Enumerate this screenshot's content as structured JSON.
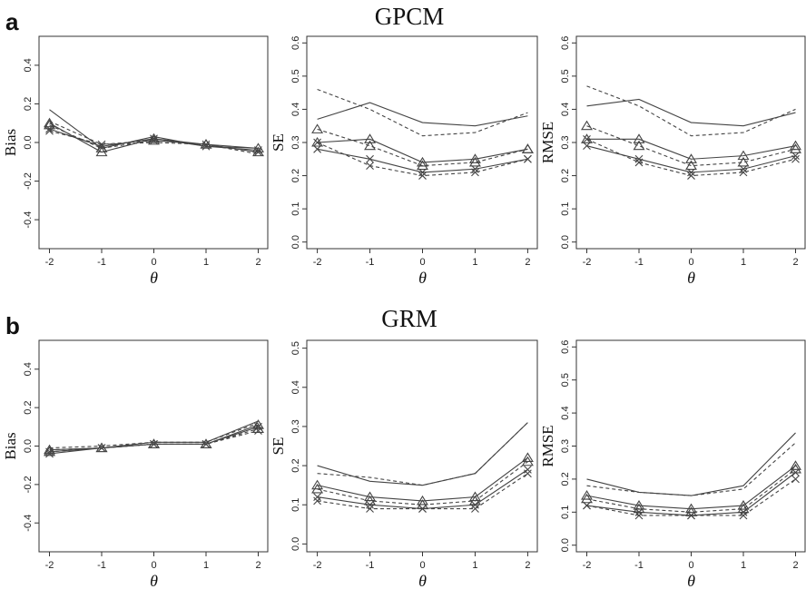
{
  "figure": {
    "row_letters": [
      "a",
      "b"
    ],
    "row_titles": [
      "GPCM",
      "GRM"
    ]
  },
  "colors": {
    "line": "#444444",
    "frame": "#333333",
    "text": "#111111"
  },
  "chart_data": [
    {
      "type": "line",
      "row": "a",
      "model": "GPCM",
      "title": "GPCM",
      "xlabel": "θ",
      "ylabel": "Bias",
      "x": [
        -2,
        -1,
        0,
        1,
        2
      ],
      "xlim": [
        -2.2,
        2.2
      ],
      "ylim": [
        -0.55,
        0.55
      ],
      "yticks": [
        -0.4,
        -0.2,
        0.0,
        0.2,
        0.4
      ],
      "series": [
        {
          "values": [
            0.17,
            -0.03,
            0.03,
            -0.02,
            -0.03
          ],
          "dash": "solid",
          "marker": "none"
        },
        {
          "values": [
            0.11,
            -0.01,
            0.0,
            -0.01,
            -0.06
          ],
          "dash": "dashed",
          "marker": "none"
        },
        {
          "values": [
            0.1,
            -0.05,
            0.02,
            -0.01,
            -0.03
          ],
          "dash": "solid",
          "marker": "triangle"
        },
        {
          "values": [
            0.09,
            -0.03,
            0.01,
            -0.01,
            -0.05
          ],
          "dash": "dashed",
          "marker": "triangle"
        },
        {
          "values": [
            0.07,
            -0.02,
            0.02,
            -0.02,
            -0.04
          ],
          "dash": "solid",
          "marker": "x"
        },
        {
          "values": [
            0.06,
            -0.01,
            0.01,
            -0.01,
            -0.05
          ],
          "dash": "dashed",
          "marker": "x"
        }
      ]
    },
    {
      "type": "line",
      "row": "a",
      "model": "GPCM",
      "title": "",
      "xlabel": "θ",
      "ylabel": "SE",
      "x": [
        -2,
        -1,
        0,
        1,
        2
      ],
      "xlim": [
        -2.2,
        2.2
      ],
      "ylim": [
        -0.02,
        0.62
      ],
      "yticks": [
        0.0,
        0.1,
        0.2,
        0.3,
        0.4,
        0.5,
        0.6
      ],
      "series": [
        {
          "values": [
            0.37,
            0.42,
            0.36,
            0.35,
            0.38
          ],
          "dash": "solid",
          "marker": "none"
        },
        {
          "values": [
            0.46,
            0.4,
            0.32,
            0.33,
            0.39
          ],
          "dash": "dashed",
          "marker": "none"
        },
        {
          "values": [
            0.3,
            0.31,
            0.24,
            0.25,
            0.28
          ],
          "dash": "solid",
          "marker": "triangle"
        },
        {
          "values": [
            0.34,
            0.29,
            0.23,
            0.24,
            0.28
          ],
          "dash": "dashed",
          "marker": "triangle"
        },
        {
          "values": [
            0.28,
            0.25,
            0.21,
            0.22,
            0.25
          ],
          "dash": "solid",
          "marker": "x"
        },
        {
          "values": [
            0.3,
            0.23,
            0.2,
            0.21,
            0.25
          ],
          "dash": "dashed",
          "marker": "x"
        }
      ]
    },
    {
      "type": "line",
      "row": "a",
      "model": "GPCM",
      "title": "",
      "xlabel": "θ",
      "ylabel": "RMSE",
      "x": [
        -2,
        -1,
        0,
        1,
        2
      ],
      "xlim": [
        -2.2,
        2.2
      ],
      "ylim": [
        -0.02,
        0.62
      ],
      "yticks": [
        0.0,
        0.1,
        0.2,
        0.3,
        0.4,
        0.5,
        0.6
      ],
      "series": [
        {
          "values": [
            0.41,
            0.43,
            0.36,
            0.35,
            0.39
          ],
          "dash": "solid",
          "marker": "none"
        },
        {
          "values": [
            0.47,
            0.41,
            0.32,
            0.33,
            0.4
          ],
          "dash": "dashed",
          "marker": "none"
        },
        {
          "values": [
            0.31,
            0.31,
            0.25,
            0.26,
            0.29
          ],
          "dash": "solid",
          "marker": "triangle"
        },
        {
          "values": [
            0.35,
            0.29,
            0.23,
            0.24,
            0.28
          ],
          "dash": "dashed",
          "marker": "triangle"
        },
        {
          "values": [
            0.29,
            0.25,
            0.21,
            0.22,
            0.26
          ],
          "dash": "solid",
          "marker": "x"
        },
        {
          "values": [
            0.31,
            0.24,
            0.2,
            0.21,
            0.25
          ],
          "dash": "dashed",
          "marker": "x"
        }
      ]
    },
    {
      "type": "line",
      "row": "b",
      "model": "GRM",
      "title": "GRM",
      "xlabel": "θ",
      "ylabel": "Bias",
      "x": [
        -2,
        -1,
        0,
        1,
        2
      ],
      "xlim": [
        -2.2,
        2.2
      ],
      "ylim": [
        -0.55,
        0.55
      ],
      "yticks": [
        -0.4,
        -0.2,
        0.0,
        0.2,
        0.4
      ],
      "series": [
        {
          "values": [
            -0.02,
            -0.01,
            0.02,
            0.02,
            0.13
          ],
          "dash": "solid",
          "marker": "none"
        },
        {
          "values": [
            -0.01,
            0.0,
            0.02,
            0.02,
            0.12
          ],
          "dash": "dashed",
          "marker": "none"
        },
        {
          "values": [
            -0.03,
            -0.01,
            0.01,
            0.01,
            0.11
          ],
          "dash": "solid",
          "marker": "triangle"
        },
        {
          "values": [
            -0.02,
            -0.01,
            0.01,
            0.01,
            0.09
          ],
          "dash": "dashed",
          "marker": "triangle"
        },
        {
          "values": [
            -0.04,
            -0.01,
            0.01,
            0.01,
            0.1
          ],
          "dash": "solid",
          "marker": "x"
        },
        {
          "values": [
            -0.03,
            -0.01,
            0.01,
            0.01,
            0.08
          ],
          "dash": "dashed",
          "marker": "x"
        }
      ]
    },
    {
      "type": "line",
      "row": "b",
      "model": "GRM",
      "title": "",
      "xlabel": "θ",
      "ylabel": "SE",
      "x": [
        -2,
        -1,
        0,
        1,
        2
      ],
      "xlim": [
        -2.2,
        2.2
      ],
      "ylim": [
        -0.02,
        0.52
      ],
      "yticks": [
        0.0,
        0.1,
        0.2,
        0.3,
        0.4,
        0.5
      ],
      "series": [
        {
          "values": [
            0.2,
            0.16,
            0.15,
            0.18,
            0.31
          ],
          "dash": "solid",
          "marker": "none"
        },
        {
          "values": [
            0.18,
            0.17,
            0.15,
            0.18,
            0.31
          ],
          "dash": "dashed",
          "marker": "none"
        },
        {
          "values": [
            0.15,
            0.12,
            0.11,
            0.12,
            0.22
          ],
          "dash": "solid",
          "marker": "triangle"
        },
        {
          "values": [
            0.14,
            0.11,
            0.1,
            0.11,
            0.21
          ],
          "dash": "dashed",
          "marker": "triangle"
        },
        {
          "values": [
            0.12,
            0.1,
            0.09,
            0.1,
            0.19
          ],
          "dash": "solid",
          "marker": "x"
        },
        {
          "values": [
            0.11,
            0.09,
            0.09,
            0.09,
            0.18
          ],
          "dash": "dashed",
          "marker": "x"
        }
      ]
    },
    {
      "type": "line",
      "row": "b",
      "model": "GRM",
      "title": "",
      "xlabel": "θ",
      "ylabel": "RMSE",
      "x": [
        -2,
        -1,
        0,
        1,
        2
      ],
      "xlim": [
        -2.2,
        2.2
      ],
      "ylim": [
        -0.02,
        0.62
      ],
      "yticks": [
        0.0,
        0.1,
        0.2,
        0.3,
        0.4,
        0.5,
        0.6
      ],
      "series": [
        {
          "values": [
            0.2,
            0.16,
            0.15,
            0.18,
            0.34
          ],
          "dash": "solid",
          "marker": "none"
        },
        {
          "values": [
            0.18,
            0.16,
            0.15,
            0.17,
            0.31
          ],
          "dash": "dashed",
          "marker": "none"
        },
        {
          "values": [
            0.15,
            0.12,
            0.11,
            0.12,
            0.24
          ],
          "dash": "solid",
          "marker": "triangle"
        },
        {
          "values": [
            0.14,
            0.11,
            0.1,
            0.11,
            0.23
          ],
          "dash": "dashed",
          "marker": "triangle"
        },
        {
          "values": [
            0.12,
            0.1,
            0.09,
            0.1,
            0.22
          ],
          "dash": "solid",
          "marker": "x"
        },
        {
          "values": [
            0.12,
            0.09,
            0.09,
            0.09,
            0.2
          ],
          "dash": "dashed",
          "marker": "x"
        }
      ]
    }
  ]
}
